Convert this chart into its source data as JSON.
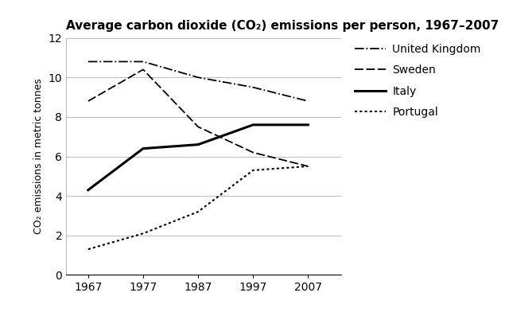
{
  "title": "Average carbon dioxide (CO₂) emissions per person, 1967–2007",
  "ylabel": "CO₂ emissions in metric tonnes",
  "years": [
    1967,
    1977,
    1987,
    1997,
    2007
  ],
  "united_kingdom": [
    10.8,
    10.8,
    10.0,
    9.5,
    8.8
  ],
  "sweden": [
    8.8,
    10.4,
    7.5,
    6.2,
    5.5
  ],
  "italy": [
    4.3,
    6.4,
    6.6,
    7.6,
    7.6
  ],
  "portugal": [
    1.3,
    2.1,
    3.2,
    5.3,
    5.5
  ],
  "ylim": [
    0,
    12
  ],
  "yticks": [
    0,
    2,
    4,
    6,
    8,
    10,
    12
  ],
  "xlim_left": 1963,
  "xlim_right": 2013,
  "bg_color": "#ffffff",
  "line_color": "#000000",
  "grid_color": "#bbbbbb",
  "title_fontsize": 11,
  "label_fontsize": 9,
  "tick_fontsize": 10,
  "legend_fontsize": 10
}
